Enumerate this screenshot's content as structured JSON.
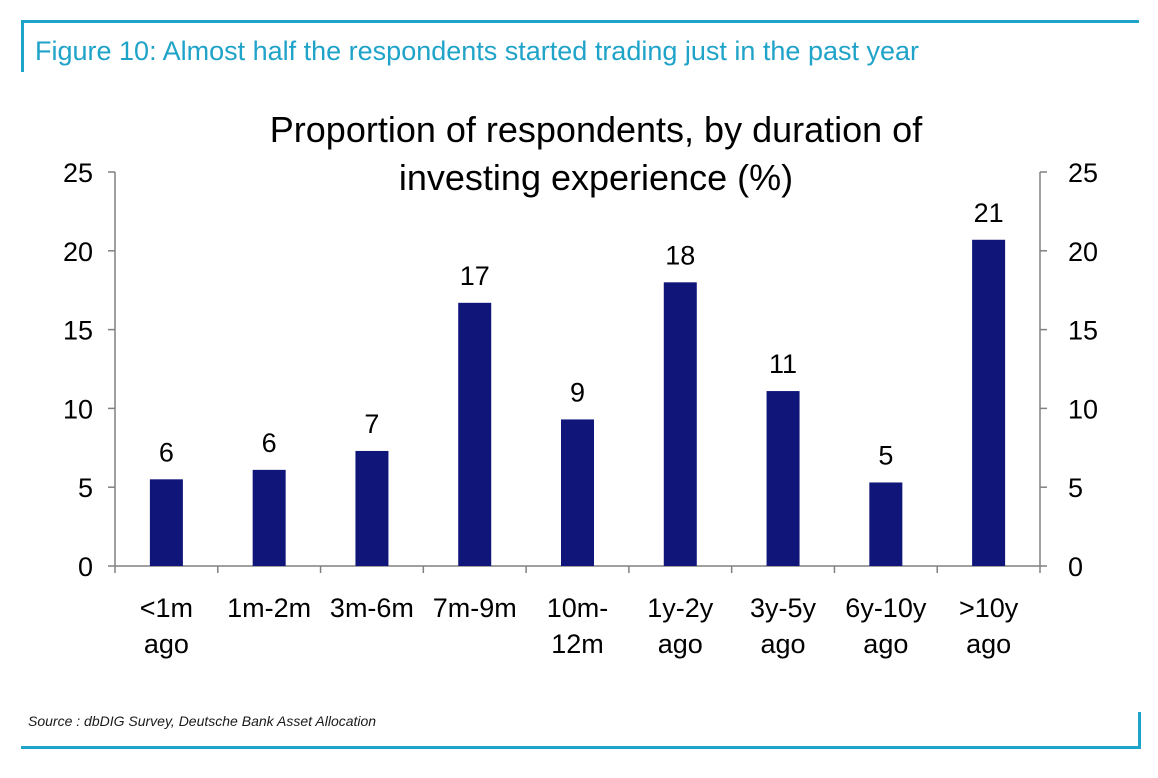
{
  "figure_heading": "Figure 10: Almost half the respondents started trading just in the past year",
  "source_note": "Source : dbDIG Survey, Deutsche Bank Asset Allocation",
  "chart_data": {
    "type": "bar",
    "title": "Proportion of respondents, by duration of investing experience (%)",
    "title_lines": [
      "Proportion of respondents, by duration of",
      "investing experience (%)"
    ],
    "categories": [
      [
        "<1m",
        "ago"
      ],
      [
        "1m-2m"
      ],
      [
        "3m-6m"
      ],
      [
        "7m-9m"
      ],
      [
        "10m-",
        "12m"
      ],
      [
        "1y-2y",
        "ago"
      ],
      [
        "3y-5y",
        "ago"
      ],
      [
        "6y-10y",
        "ago"
      ],
      [
        ">10y",
        "ago"
      ]
    ],
    "values": [
      5.5,
      6.1,
      7.3,
      16.7,
      9.3,
      18.0,
      11.1,
      5.3,
      20.7
    ],
    "data_labels": [
      "6",
      "6",
      "7",
      "17",
      "9",
      "18",
      "11",
      "5",
      "21"
    ],
    "ylim": [
      0,
      25
    ],
    "yticks": [
      "0",
      "5",
      "10",
      "15",
      "20",
      "25"
    ],
    "y_axis_right": true,
    "grid": false,
    "legend": "none",
    "bar_color": "#10157a",
    "accent_color": "#1fa3c9"
  }
}
